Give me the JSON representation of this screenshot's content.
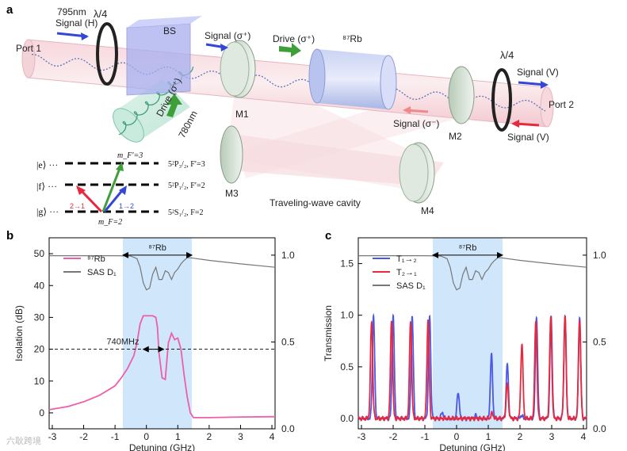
{
  "panel_a": {
    "label": "a",
    "port1": "Port 1",
    "port2": "Port 2",
    "wavelength_795": "795nm",
    "signal_h": "Signal (H)",
    "qwp_left": "λ/4",
    "qwp_right": "λ/4",
    "bs": "BS",
    "signal_sigma_plus": "Signal (σ⁺)",
    "drive_sigma_plus": "Drive (σ⁺)",
    "rb87": "⁸⁷Rb",
    "signal_v_out": "Signal (V)",
    "signal_v_in": "Signal (V)",
    "signal_sigma_minus": "Signal (σ⁻)",
    "drive_780": "Drive (σ⁺)",
    "wavelength_780": "780nm",
    "m1": "M1",
    "m2": "M2",
    "m3": "M3",
    "m4": "M4",
    "cavity": "Traveling-wave cavity",
    "levels": {
      "e": "|e⟩ ···",
      "f": "|f⟩ ···",
      "g": "|g⟩ ···",
      "mf_prime": "m_F′=3",
      "mf": "m_F=2",
      "e_term": "5²P₃/₂, F′=3",
      "f_term": "5²P₁/₂, F′=2",
      "g_term": "5²S₁/₂, F=2",
      "arrow_21": "2→1",
      "arrow_12": "1→2"
    }
  },
  "chart_data": [
    {
      "type": "line",
      "panel": "b",
      "xlabel": "Detuning (GHz)",
      "ylabel": "Isolation (dB)",
      "xlim": [
        -3.1,
        4.1
      ],
      "ylim": [
        -5,
        55
      ],
      "y2lim": [
        0,
        1.1
      ],
      "xticks": [
        "-3",
        "-2",
        "-1",
        "0",
        "1",
        "2",
        "3",
        "4"
      ],
      "yticks": [
        "0",
        "10",
        "20",
        "30",
        "40",
        "50"
      ],
      "y2ticks": [
        "0.0",
        "0.5",
        "1.0"
      ],
      "shade": [
        -0.75,
        1.45
      ],
      "annotation": "740MHz",
      "annotation_level": 20,
      "rb_label": "⁸⁷Rb",
      "legend": [
        "⁸⁷Rb",
        "SAS D₁"
      ],
      "series": [
        {
          "name": "⁸⁷Rb",
          "color": "#ee5fa7",
          "x": [
            -3.1,
            -2.5,
            -2.0,
            -1.5,
            -1.0,
            -0.8,
            -0.6,
            -0.4,
            -0.3,
            -0.2,
            -0.1,
            0.0,
            0.1,
            0.2,
            0.3,
            0.35,
            0.4,
            0.5,
            0.6,
            0.7,
            0.8,
            0.9,
            1.0,
            1.1,
            1.2,
            1.3,
            1.4,
            1.5,
            2.0,
            3.0,
            4.1
          ],
          "y": [
            1.0,
            2.0,
            3.5,
            5.5,
            8.5,
            11.0,
            14.0,
            18.0,
            22.0,
            28.0,
            30.5,
            30.5,
            30.5,
            30.5,
            30.0,
            27.0,
            19.0,
            11.0,
            10.5,
            22.0,
            25.0,
            23.0,
            23.5,
            20.0,
            12.0,
            5.0,
            0.0,
            -1.5,
            -1.5,
            -1.3,
            -1.2
          ]
        },
        {
          "name": "SAS D₁",
          "color": "#777777",
          "axis": "right",
          "x": [
            -3.1,
            -1.0,
            -0.5,
            -0.3,
            -0.2,
            -0.1,
            0.0,
            0.1,
            0.2,
            0.3,
            0.4,
            0.5,
            0.6,
            0.7,
            0.8,
            0.9,
            1.0,
            1.1,
            1.2,
            1.3,
            1.4,
            1.6,
            2.0,
            3.0,
            4.1
          ],
          "y": [
            0.997,
            0.997,
            0.995,
            0.98,
            0.93,
            0.84,
            0.8,
            0.81,
            0.89,
            0.93,
            0.86,
            0.86,
            0.91,
            0.9,
            0.86,
            0.9,
            0.92,
            0.95,
            0.97,
            0.985,
            0.985,
            0.98,
            0.97,
            0.95,
            0.93
          ]
        }
      ]
    },
    {
      "type": "line",
      "panel": "c",
      "xlabel": "Detuning (GHz)",
      "ylabel": "Transmission",
      "xlim": [
        -3.1,
        4.1
      ],
      "ylim": [
        -0.1,
        1.75
      ],
      "y2lim": [
        0,
        1.1
      ],
      "xticks": [
        "-3",
        "-2",
        "-1",
        "0",
        "1",
        "2",
        "3",
        "4"
      ],
      "yticks": [
        "0.0",
        "0.5",
        "1.0",
        "1.5"
      ],
      "y2ticks": [
        "0.0",
        "0.5",
        "1.0"
      ],
      "shade": [
        -0.75,
        1.45
      ],
      "rb_label": "⁸⁷Rb",
      "legend": [
        "T₁→₂",
        "T₂→₁",
        "SAS D₁"
      ],
      "series": [
        {
          "name": "T₁→₂",
          "color": "#4b57e6",
          "peaks": [
            [
              -2.62,
              1.0
            ],
            [
              -2.0,
              0.99
            ],
            [
              -1.4,
              0.99
            ],
            [
              -0.85,
              0.99
            ],
            [
              -0.45,
              0.06
            ],
            [
              0.05,
              0.26
            ],
            [
              0.6,
              0.03
            ],
            [
              1.1,
              0.62
            ],
            [
              1.6,
              0.53
            ],
            [
              2.05,
              0.03
            ],
            [
              2.52,
              0.99
            ],
            [
              2.98,
              0.99
            ],
            [
              3.42,
              1.0
            ],
            [
              3.88,
              0.99
            ]
          ]
        },
        {
          "name": "T₂→₁",
          "color": "#e8283c",
          "peaks": [
            [
              -2.68,
              0.94
            ],
            [
              -2.05,
              0.95
            ],
            [
              -1.45,
              0.94
            ],
            [
              -0.9,
              0.95
            ],
            [
              1.12,
              0.05
            ],
            [
              1.6,
              0.34
            ],
            [
              2.06,
              0.72
            ],
            [
              2.5,
              0.95
            ],
            [
              2.97,
              0.97
            ],
            [
              3.42,
              0.99
            ],
            [
              3.88,
              0.95
            ]
          ]
        },
        {
          "name": "SAS D₁",
          "color": "#777777",
          "axis": "right",
          "x": [
            -3.1,
            -1.0,
            -0.5,
            -0.3,
            -0.2,
            -0.1,
            0.0,
            0.1,
            0.2,
            0.3,
            0.4,
            0.5,
            0.6,
            0.7,
            0.8,
            0.9,
            1.0,
            1.1,
            1.2,
            1.3,
            1.4,
            1.6,
            2.0,
            3.0,
            4.1
          ],
          "y": [
            0.997,
            0.997,
            0.995,
            0.98,
            0.93,
            0.84,
            0.8,
            0.81,
            0.89,
            0.93,
            0.86,
            0.86,
            0.91,
            0.9,
            0.86,
            0.9,
            0.92,
            0.95,
            0.97,
            0.985,
            0.985,
            0.98,
            0.97,
            0.95,
            0.93
          ]
        }
      ]
    }
  ],
  "watermark": "六耿跨境"
}
